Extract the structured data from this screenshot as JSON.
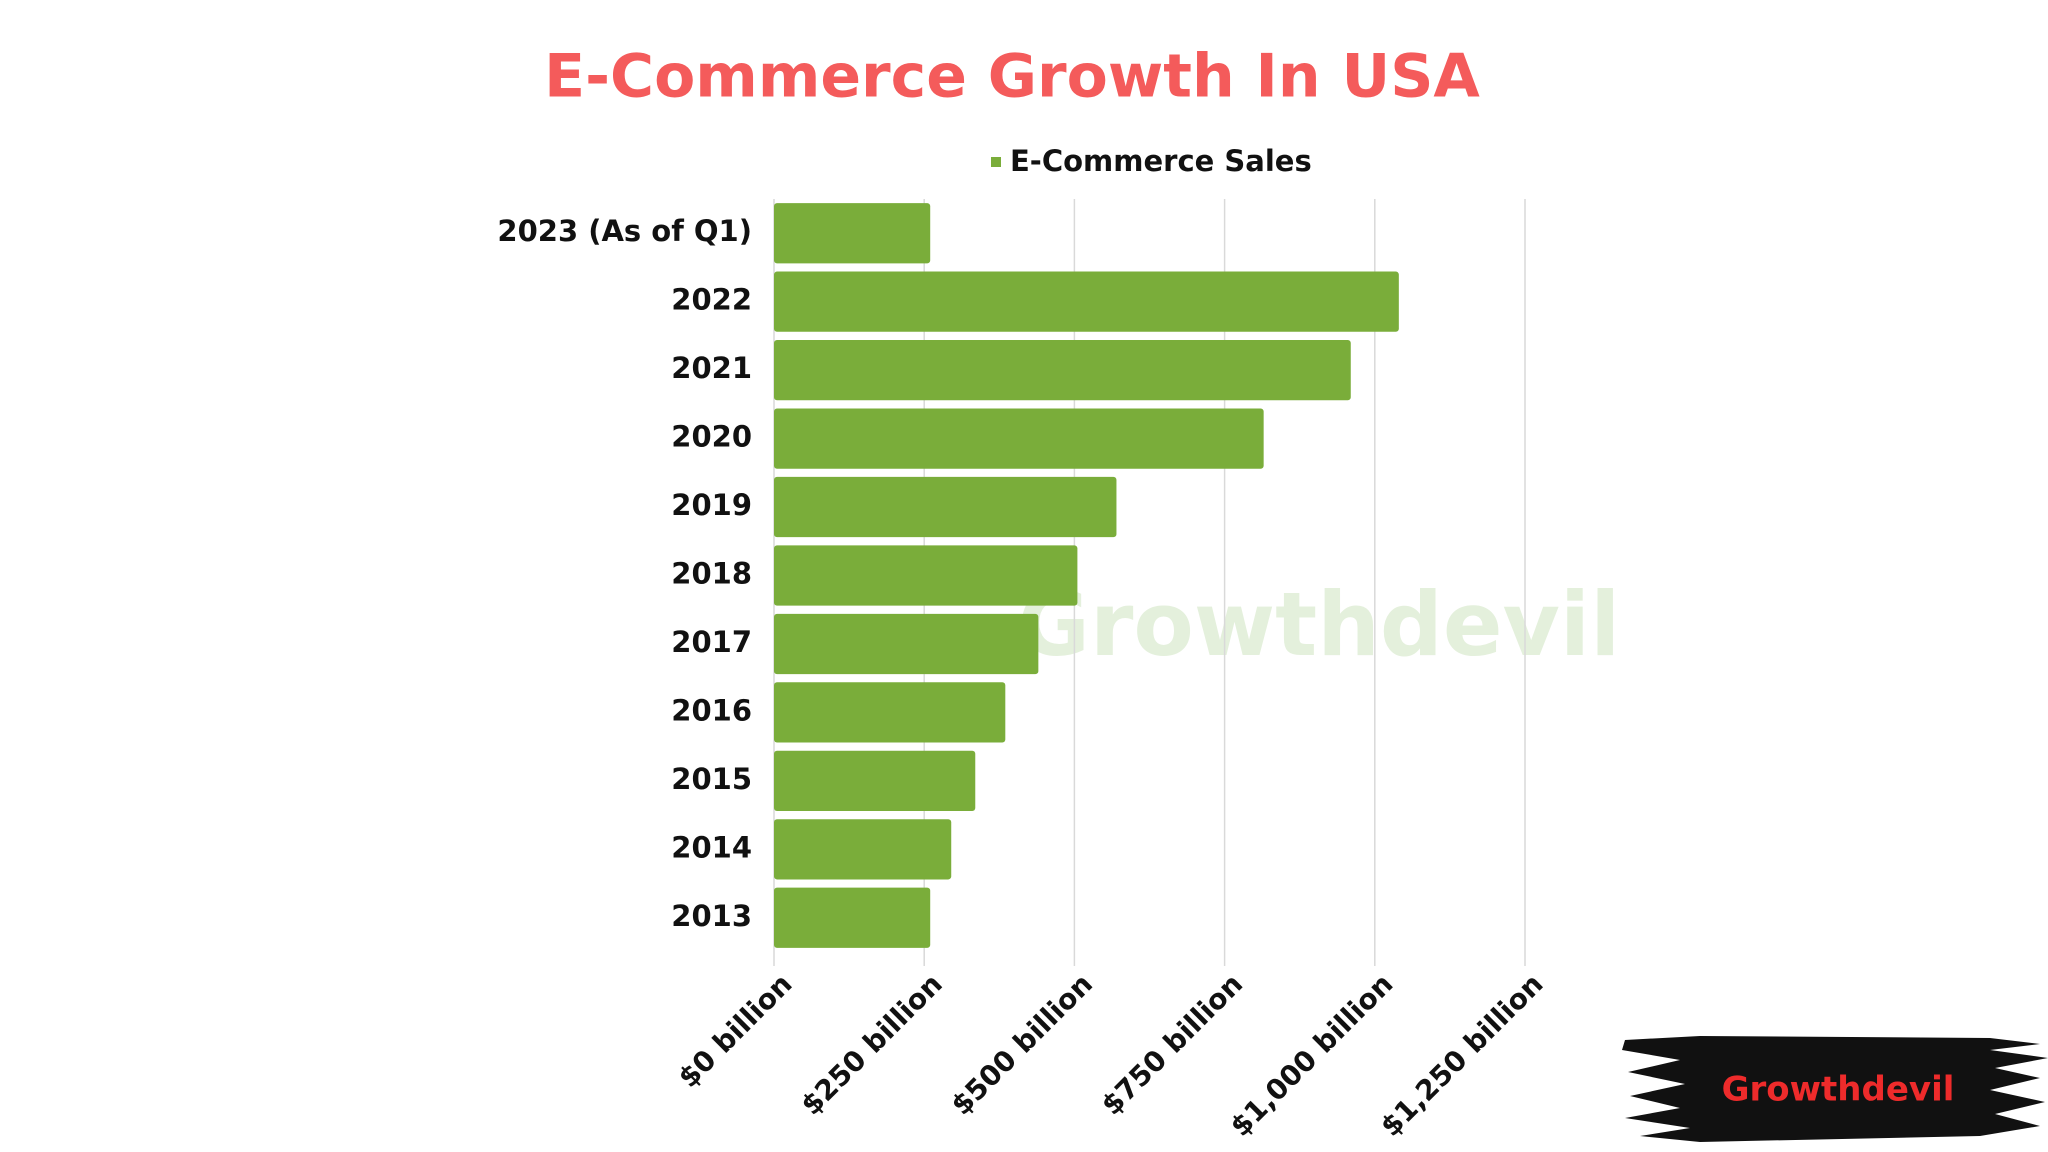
{
  "chart_data": {
    "type": "hbar",
    "title": "E-Commerce Growth In USA",
    "categories": [
      "2023 (As of Q1)",
      "2022",
      "2021",
      "2020",
      "2019",
      "2018",
      "2017",
      "2016",
      "2015",
      "2014",
      "2013"
    ],
    "series": [
      {
        "name": "E-Commerce Sales",
        "color": "#7aad3a",
        "values": [
          260,
          1040,
          960,
          815,
          570,
          505,
          440,
          385,
          335,
          295,
          260
        ]
      }
    ],
    "xlim": [
      0,
      1250
    ],
    "xticks": [
      {
        "value": 0,
        "label": "$0 billion"
      },
      {
        "value": 250,
        "label": "$250 billion"
      },
      {
        "value": 500,
        "label": "$500 billion"
      },
      {
        "value": 750,
        "label": "$750 billion"
      },
      {
        "value": 1000,
        "label": "$1,000 billion"
      },
      {
        "value": 1250,
        "label": "$1,250 billion"
      }
    ],
    "grid": true,
    "legend": "top"
  },
  "watermark": "Growthdevil",
  "brand": "Growthdevil"
}
